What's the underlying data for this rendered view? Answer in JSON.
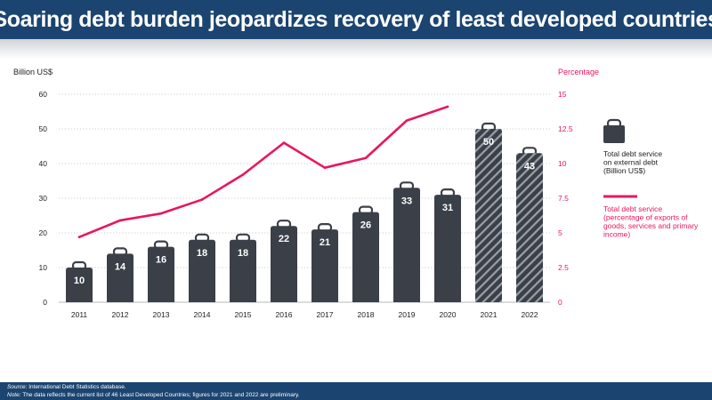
{
  "title": "Soaring debt burden jeopardizes recovery of least developed countries",
  "colors": {
    "header_bg": "#1b4470",
    "bar": "#3a3f48",
    "line": "#e8175d",
    "axis_text": "#222222",
    "right_axis_text": "#e8175d"
  },
  "chart_data": {
    "type": "bar",
    "title": "Soaring debt burden jeopardizes recovery of least developed countries",
    "categories": [
      "2011",
      "2012",
      "2013",
      "2014",
      "2015",
      "2016",
      "2017",
      "2018",
      "2019",
      "2020",
      "2021",
      "2022"
    ],
    "series": [
      {
        "name": "Total debt service on external debt (Billion US$)",
        "type": "bar",
        "axis": "left",
        "values": [
          10,
          14,
          16,
          18,
          18,
          22,
          21,
          26,
          33,
          31,
          50,
          43
        ],
        "labels": [
          "10",
          "14",
          "16",
          "18",
          "18",
          "22",
          "21",
          "26",
          "33",
          "31",
          "50",
          "43"
        ],
        "preliminary": [
          false,
          false,
          false,
          false,
          false,
          false,
          false,
          false,
          false,
          false,
          true,
          true
        ]
      },
      {
        "name": "Total debt service (percentage of exports of goods, services and primary income)",
        "type": "line",
        "axis": "right",
        "values": [
          4.7,
          5.9,
          6.4,
          7.4,
          9.2,
          11.5,
          9.7,
          10.4,
          13.1,
          14.1,
          null,
          null
        ]
      }
    ],
    "left_axis": {
      "label": "Billion US$",
      "ylim": [
        0,
        60
      ],
      "ticks": [
        "0",
        "10",
        "20",
        "30",
        "40",
        "50",
        "60"
      ],
      "tick_values": [
        0,
        10,
        20,
        30,
        40,
        50,
        60
      ]
    },
    "right_axis": {
      "label": "Percentage",
      "ylim": [
        0,
        15
      ],
      "ticks": [
        "0",
        "2.5",
        "5",
        "7.5",
        "10",
        "12.5",
        "15"
      ],
      "tick_values": [
        0,
        2.5,
        5,
        7.5,
        10,
        12.5,
        15
      ]
    },
    "grid": true,
    "legend_position": "right"
  },
  "legend": {
    "bar_label": [
      "Total debt service",
      "on external debt",
      "(Billion US$)"
    ],
    "line_label": [
      "Total debt service",
      "(percentage of exports of",
      "goods, services and primary",
      "income)"
    ]
  },
  "footer": {
    "source_label": "Source:",
    "source_text": " International Debt Statistics database.",
    "note_label": "Note:",
    "note_text": " The data reflects the current list of 46 Least Developed Countries; figures for 2021 and 2022 are preliminary."
  }
}
